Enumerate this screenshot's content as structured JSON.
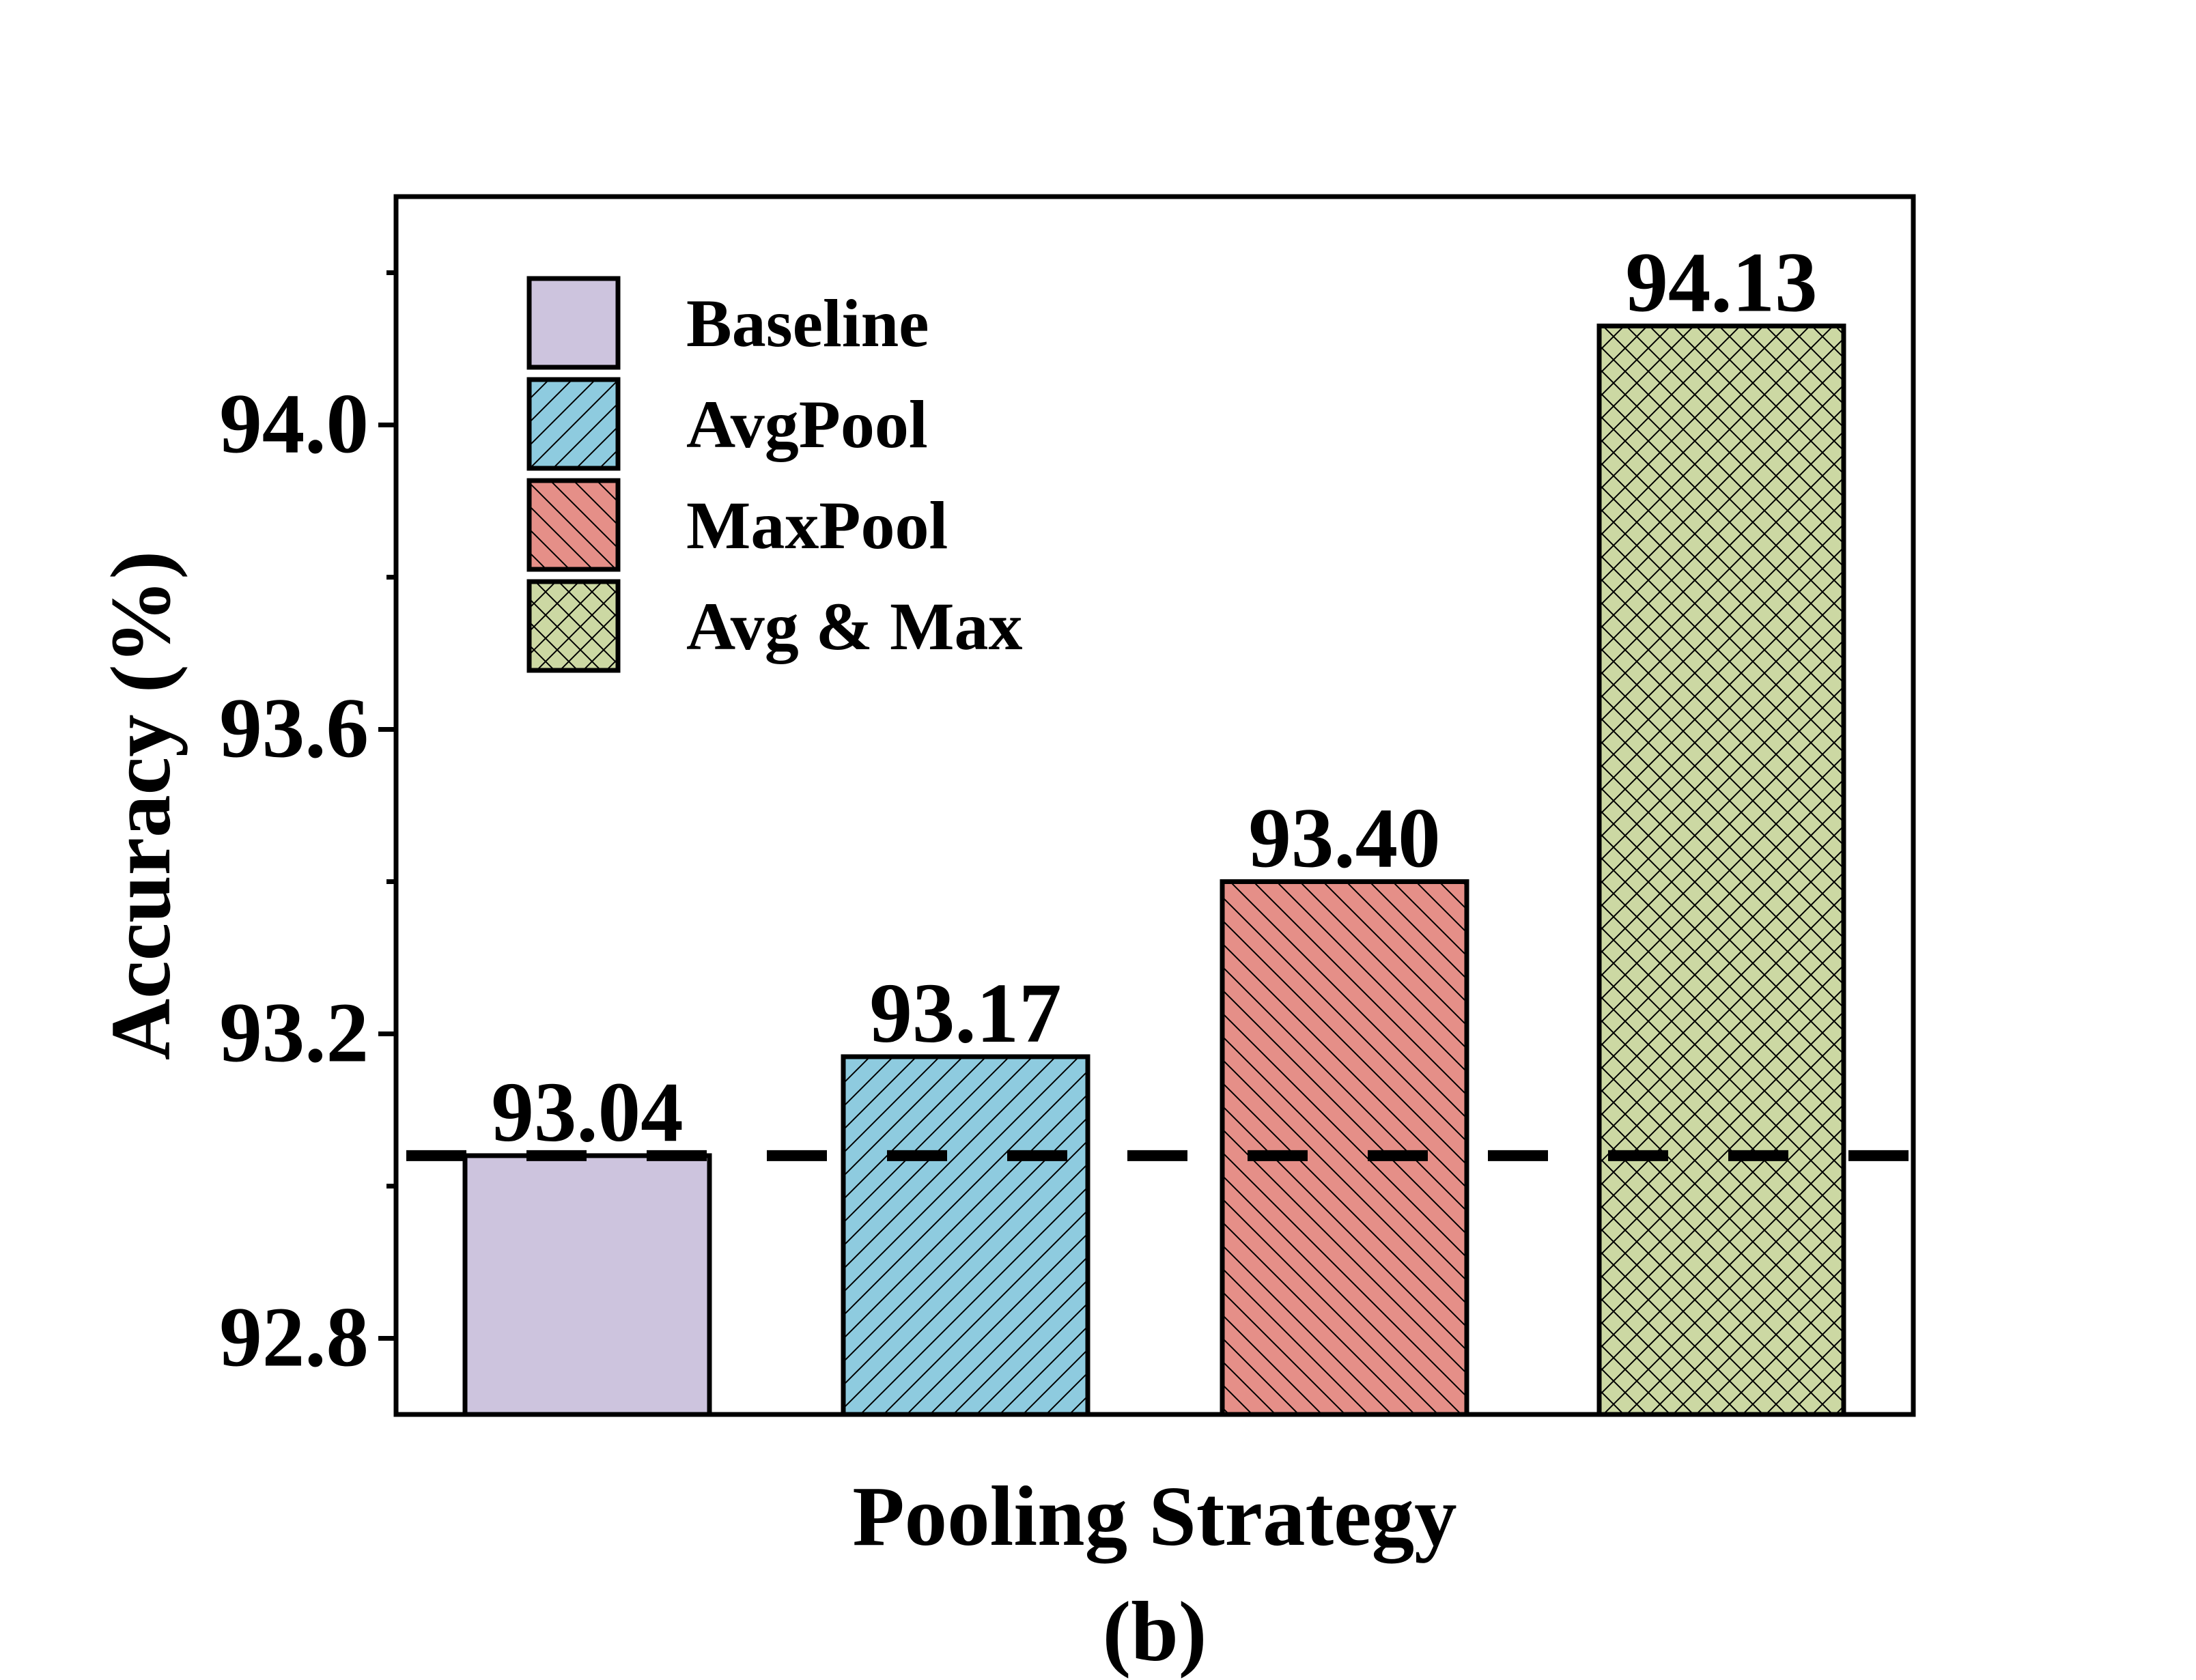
{
  "chart_data": {
    "type": "bar",
    "categories": [
      "Baseline",
      "AvgPool",
      "MaxPool",
      "Avg & Max"
    ],
    "values": [
      93.04,
      93.17,
      93.4,
      94.13
    ],
    "value_labels": [
      "93.04",
      "93.17",
      "93.40",
      "94.13"
    ],
    "xlabel": "Pooling Strategy",
    "ylabel": "Accuracy (%)",
    "caption": "(b)",
    "ylim": [
      92.7,
      94.3
    ],
    "yticks": [
      92.8,
      93.2,
      93.6,
      94.0
    ],
    "ytick_labels": [
      "92.8",
      "93.2",
      "93.6",
      "94.0"
    ],
    "reference_line": 93.04,
    "legend_position": "upper-left",
    "grid": false,
    "colors": [
      "#cdc4de",
      "#8ecbdf",
      "#e58f88",
      "#ccd8a3"
    ],
    "hatches": [
      "none",
      "forward-diagonal",
      "back-diagonal",
      "crosshatch"
    ]
  }
}
